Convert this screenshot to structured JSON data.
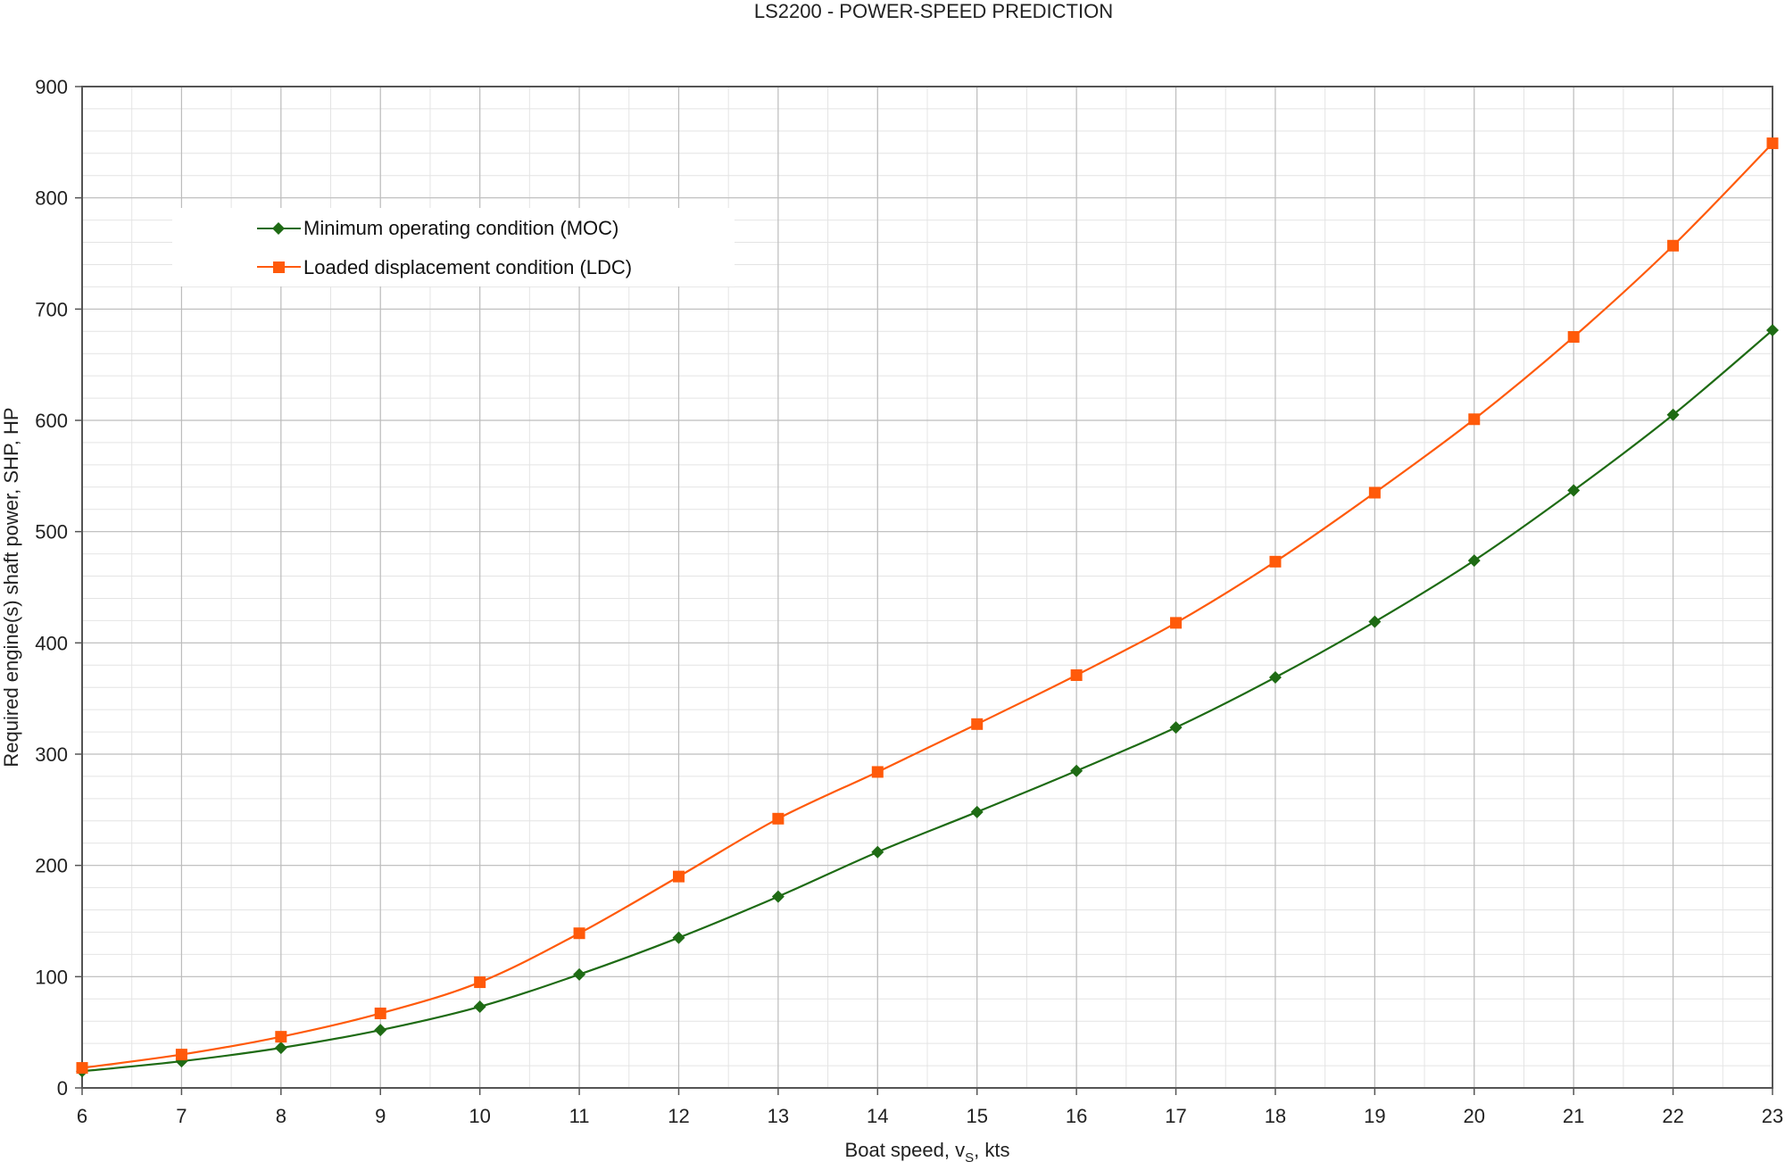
{
  "chart_data": {
    "type": "line",
    "title": "LS2200 - POWER-SPEED PREDICTION",
    "xlabel": "Boat speed, vS, kts",
    "xlabel_parts": {
      "main": "Boat speed, v",
      "sub": "S",
      "tail": ", kts"
    },
    "ylabel": "Required engine(s) shaft power, SHP, HP",
    "xlim": [
      6,
      23
    ],
    "ylim": [
      0,
      900
    ],
    "x_major_ticks": [
      6,
      7,
      8,
      9,
      10,
      11,
      12,
      13,
      14,
      15,
      16,
      17,
      18,
      19,
      20,
      21,
      22,
      23
    ],
    "y_major_ticks": [
      0,
      100,
      200,
      300,
      400,
      500,
      600,
      700,
      800,
      900
    ],
    "x_minor_step": 0.5,
    "y_minor_step": 20,
    "grid": true,
    "legend_position": "top-left",
    "x": [
      6,
      7,
      8,
      9,
      10,
      11,
      12,
      13,
      14,
      15,
      16,
      17,
      18,
      19,
      20,
      21,
      22,
      23
    ],
    "series": [
      {
        "name": "Minimum operating condition (MOC)",
        "color": "#1e6b14",
        "marker": "diamond",
        "values": [
          15,
          24,
          36,
          52,
          73,
          102,
          135,
          172,
          212,
          248,
          285,
          324,
          369,
          419,
          474,
          537,
          605,
          681
        ]
      },
      {
        "name": "Loaded displacement condition (LDC)",
        "color": "#ff5a0a",
        "marker": "square",
        "values": [
          18,
          30,
          46,
          67,
          95,
          139,
          190,
          242,
          284,
          327,
          371,
          418,
          473,
          535,
          601,
          675,
          757,
          849
        ]
      }
    ]
  }
}
